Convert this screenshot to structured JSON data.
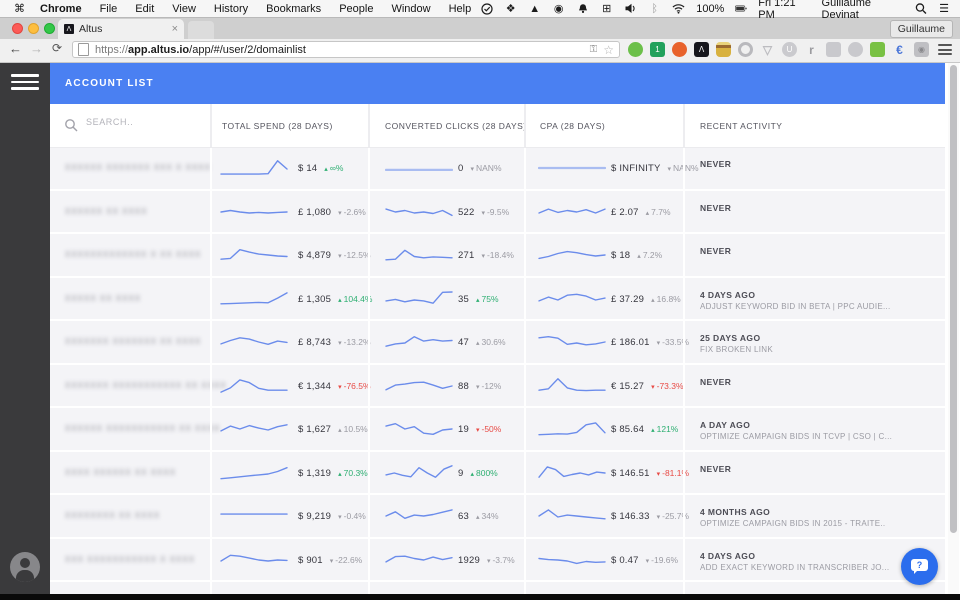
{
  "menubar": {
    "apple_label": "",
    "items": [
      "Chrome",
      "File",
      "Edit",
      "View",
      "History",
      "Bookmarks",
      "People",
      "Window",
      "Help"
    ],
    "status_icons": [
      {
        "name": "sync-check-icon",
        "glyph": "svg:sync"
      },
      {
        "name": "dropbox-icon",
        "glyph": "❖"
      },
      {
        "name": "drive-icon",
        "glyph": "▲"
      },
      {
        "name": "mask-icon",
        "glyph": "◉"
      },
      {
        "name": "bell-icon",
        "glyph": "svg:bell"
      },
      {
        "name": "window-grid-icon",
        "glyph": "⊞"
      },
      {
        "name": "volume-icon",
        "glyph": "svg:volume"
      },
      {
        "name": "bluetooth-icon",
        "glyph": "ᛒ",
        "dim": true
      },
      {
        "name": "wifi-icon",
        "glyph": "svg:wifi"
      }
    ],
    "battery_label": "100%",
    "clock": "Fri 1:21 PM",
    "user": "Guillaume Devinat"
  },
  "browser": {
    "tab_title": "Altus",
    "tab_favicon": "Λ",
    "close_glyph": "×",
    "profile_button": "Guillaume",
    "url_scheme": "https://",
    "url_host": "app.altus.io",
    "url_path": "/app/#/user/2/domainlist",
    "extensions": [
      {
        "name": "ghostery-icon",
        "kind": "circle",
        "bg": "#6cc04a",
        "glyph": "",
        "fg": "#fff"
      },
      {
        "name": "battery-ext-icon",
        "kind": "square",
        "bg": "#22a15c",
        "glyph": "1",
        "fg": "#fff"
      },
      {
        "name": "flame-icon",
        "kind": "circle",
        "bg": "#e8622c",
        "glyph": "",
        "fg": "#fff"
      },
      {
        "name": "altus-ext-icon",
        "kind": "square",
        "bg": "#17171d",
        "glyph": "Λ",
        "fg": "#fff"
      },
      {
        "name": "burger-icon",
        "kind": "burger",
        "bg": "#d8b13f",
        "glyph": "",
        "fg": "#6b4a12"
      },
      {
        "name": "target-icon",
        "kind": "ring",
        "bg": "#b9b9bd",
        "glyph": "",
        "fg": "#b9b9bd"
      },
      {
        "name": "vimeo-icon",
        "kind": "text",
        "bg": "",
        "glyph": "▽",
        "fg": "#bcbcc0"
      },
      {
        "name": "u-icon",
        "kind": "circle",
        "bg": "#cacace",
        "glyph": "U",
        "fg": "#fff"
      },
      {
        "name": "r-icon",
        "kind": "text",
        "bg": "",
        "glyph": "r",
        "fg": "#9b9b9f"
      },
      {
        "name": "chat-ext-icon",
        "kind": "square",
        "bg": "#c9c9cd",
        "glyph": "",
        "fg": "#fff"
      },
      {
        "name": "drop-icon",
        "kind": "circle",
        "bg": "#c9c9cd",
        "glyph": "",
        "fg": "#fff"
      },
      {
        "name": "frog-icon",
        "kind": "square",
        "bg": "#79c144",
        "glyph": "",
        "fg": "#2c5a12"
      },
      {
        "name": "euro-icon",
        "kind": "text",
        "bg": "",
        "glyph": "€",
        "fg": "#4a76d8"
      },
      {
        "name": "camera-icon",
        "kind": "square",
        "bg": "#bfbfc3",
        "glyph": "◉",
        "fg": "#88888c"
      }
    ]
  },
  "app": {
    "header_title": "ACCOUNT LIST",
    "search_placeholder": "SEARCH..",
    "columns": [
      "TOTAL SPEND (28 DAYS)",
      "CONVERTED CLICKS (28 DAYS)",
      "CPA (28 DAYS)",
      "RECENT ACTIVITY"
    ]
  },
  "colors": {
    "accent_blue": "#4a80f2",
    "sidebar": "#3a3a3c",
    "spark_line": "#6b8ceb",
    "spark_light": "#a9bcf1",
    "green": "#2eaf72",
    "red": "#e84a45",
    "gray_change": "#9b9ba3",
    "chat_button": "#2b6ded"
  },
  "rows": [
    {
      "name": "XXXXXX XXXXXXX XXX X XXXX",
      "spend": {
        "value": "$ 14",
        "dir": "up",
        "pct": "∞%",
        "tone": "green",
        "spark": [
          0.82,
          0.82,
          0.82,
          0.82,
          0.82,
          0.8,
          0.12,
          0.55
        ]
      },
      "clicks": {
        "value": "0",
        "dir": "down",
        "pct": "NAN%",
        "tone": "gray",
        "light": true,
        "spark": [
          0.6,
          0.6,
          0.6,
          0.6,
          0.6,
          0.6,
          0.6,
          0.6
        ]
      },
      "cpa": {
        "value": "$ INFINITY",
        "dir": "down",
        "pct": "NAN%",
        "tone": "gray",
        "light": true,
        "spark": [
          0.5,
          0.5,
          0.5,
          0.5,
          0.5,
          0.5,
          0.5,
          0.5
        ]
      },
      "activity": {
        "when": "NEVER",
        "detail": ""
      }
    },
    {
      "name": "XXXXXX XX XXXX",
      "spend": {
        "value": "£ 1,080",
        "dir": "down",
        "pct": "-2.6%",
        "tone": "gray",
        "spark": [
          0.5,
          0.42,
          0.5,
          0.55,
          0.52,
          0.55,
          0.52,
          0.5
        ]
      },
      "clicks": {
        "value": "522",
        "dir": "down",
        "pct": "-9.5%",
        "tone": "gray",
        "spark": [
          0.35,
          0.5,
          0.42,
          0.55,
          0.5,
          0.58,
          0.42,
          0.68
        ]
      },
      "cpa": {
        "value": "£ 2.07",
        "dir": "up",
        "pct": "7.7%",
        "tone": "gray",
        "spark": [
          0.55,
          0.35,
          0.52,
          0.42,
          0.5,
          0.38,
          0.55,
          0.35
        ]
      },
      "activity": {
        "when": "NEVER",
        "detail": ""
      }
    },
    {
      "name": "XXXXXXXXXXXXX X XX XXXX",
      "spend": {
        "value": "$ 4,879",
        "dir": "down",
        "pct": "-12.5%",
        "tone": "gray",
        "spark": [
          0.72,
          0.68,
          0.22,
          0.35,
          0.45,
          0.5,
          0.55,
          0.58
        ]
      },
      "clicks": {
        "value": "271",
        "dir": "down",
        "pct": "-18.4%",
        "tone": "gray",
        "spark": [
          0.75,
          0.72,
          0.25,
          0.58,
          0.65,
          0.6,
          0.62,
          0.65
        ]
      },
      "cpa": {
        "value": "$ 18",
        "dir": "up",
        "pct": "7.2%",
        "tone": "gray",
        "spark": [
          0.68,
          0.58,
          0.42,
          0.32,
          0.38,
          0.48,
          0.55,
          0.5
        ]
      },
      "activity": {
        "when": "NEVER",
        "detail": ""
      }
    },
    {
      "name": "XXXXX XX XXXX",
      "spend": {
        "value": "£ 1,305",
        "dir": "up",
        "pct": "104.4%",
        "tone": "green",
        "spark": [
          0.75,
          0.74,
          0.72,
          0.7,
          0.68,
          0.7,
          0.45,
          0.18
        ]
      },
      "clicks": {
        "value": "35",
        "dir": "up",
        "pct": "75%",
        "tone": "green",
        "spark": [
          0.6,
          0.52,
          0.65,
          0.55,
          0.6,
          0.72,
          0.15,
          0.13
        ]
      },
      "cpa": {
        "value": "£ 37.29",
        "dir": "up",
        "pct": "16.8%",
        "tone": "gray",
        "spark": [
          0.6,
          0.4,
          0.55,
          0.3,
          0.25,
          0.35,
          0.55,
          0.45
        ]
      },
      "activity": {
        "when": "4 DAYS AGO",
        "detail": "ADJUST KEYWORD BID IN BETA | PPC AUDIE..."
      }
    },
    {
      "name": "XXXXXXX XXXXXXX XX XXXX",
      "spend": {
        "value": "£ 8,743",
        "dir": "down",
        "pct": "-13.2%",
        "tone": "gray",
        "spark": [
          0.6,
          0.42,
          0.28,
          0.35,
          0.5,
          0.62,
          0.45,
          0.52
        ]
      },
      "clicks": {
        "value": "47",
        "dir": "up",
        "pct": "30.6%",
        "tone": "gray",
        "spark": [
          0.72,
          0.6,
          0.55,
          0.22,
          0.45,
          0.38,
          0.45,
          0.42
        ]
      },
      "cpa": {
        "value": "£ 186.01",
        "dir": "down",
        "pct": "-33.5%",
        "tone": "gray",
        "spark": [
          0.28,
          0.22,
          0.3,
          0.62,
          0.55,
          0.65,
          0.6,
          0.5
        ]
      },
      "activity": {
        "when": "25 DAYS AGO",
        "detail": "FIX BROKEN LINK"
      }
    },
    {
      "name": "XXXXXXX XXXXXXXXXXX XX XXXX",
      "spend": {
        "value": "€ 1,344",
        "dir": "down",
        "pct": "-76.5%",
        "tone": "red",
        "spark": [
          0.82,
          0.6,
          0.18,
          0.32,
          0.62,
          0.72,
          0.72,
          0.72
        ]
      },
      "clicks": {
        "value": "88",
        "dir": "down",
        "pct": "-12%",
        "tone": "gray",
        "spark": [
          0.7,
          0.45,
          0.4,
          0.32,
          0.3,
          0.45,
          0.62,
          0.5
        ]
      },
      "cpa": {
        "value": "€ 15.27",
        "dir": "down",
        "pct": "-73.3%",
        "tone": "red",
        "spark": [
          0.72,
          0.65,
          0.12,
          0.6,
          0.72,
          0.74,
          0.72,
          0.72
        ]
      },
      "activity": {
        "when": "NEVER",
        "detail": ""
      }
    },
    {
      "name": "XXXXXX XXXXXXXXXXX XX XXXX",
      "spend": {
        "value": "$ 1,627",
        "dir": "up",
        "pct": "10.5%",
        "tone": "gray",
        "spark": [
          0.6,
          0.35,
          0.5,
          0.32,
          0.45,
          0.55,
          0.38,
          0.28
        ]
      },
      "clicks": {
        "value": "19",
        "dir": "down",
        "pct": "-50%",
        "tone": "red",
        "spark": [
          0.35,
          0.22,
          0.5,
          0.38,
          0.72,
          0.78,
          0.55,
          0.5
        ]
      },
      "cpa": {
        "value": "$ 85.64",
        "dir": "up",
        "pct": "121%",
        "tone": "green",
        "spark": [
          0.8,
          0.78,
          0.75,
          0.77,
          0.68,
          0.28,
          0.18,
          0.7
        ]
      },
      "activity": {
        "when": "A DAY AGO",
        "detail": "OPTIMIZE CAMPAIGN BIDS IN TCVP | CSO | C..."
      }
    },
    {
      "name": "XXXX XXXXXX XX XXXX",
      "spend": {
        "value": "$ 1,319",
        "dir": "up",
        "pct": "70.3%",
        "tone": "green",
        "spark": [
          0.8,
          0.75,
          0.7,
          0.65,
          0.6,
          0.55,
          0.42,
          0.22
        ]
      },
      "clicks": {
        "value": "9",
        "dir": "up",
        "pct": "800%",
        "tone": "green",
        "spark": [
          0.6,
          0.5,
          0.62,
          0.7,
          0.22,
          0.5,
          0.72,
          0.3,
          0.12
        ]
      },
      "cpa": {
        "value": "$ 146.51",
        "dir": "down",
        "pct": "-81.1%",
        "tone": "red",
        "spark": [
          0.72,
          0.18,
          0.32,
          0.68,
          0.58,
          0.5,
          0.6,
          0.45,
          0.5
        ]
      },
      "activity": {
        "when": "NEVER",
        "detail": ""
      }
    },
    {
      "name": "XXXXXXXX XX XXXX",
      "spend": {
        "value": "$ 9,219",
        "dir": "down",
        "pct": "-0.4%",
        "tone": "gray",
        "spark": [
          0.4,
          0.4,
          0.4,
          0.4,
          0.4,
          0.4,
          0.4,
          0.4
        ]
      },
      "clicks": {
        "value": "63",
        "dir": "up",
        "pct": "34%",
        "tone": "gray",
        "spark": [
          0.5,
          0.28,
          0.62,
          0.45,
          0.5,
          0.42,
          0.3,
          0.18
        ]
      },
      "cpa": {
        "value": "$ 146.33",
        "dir": "down",
        "pct": "-25.7%",
        "tone": "gray",
        "spark": [
          0.5,
          0.18,
          0.55,
          0.45,
          0.5,
          0.55,
          0.6,
          0.65
        ]
      },
      "activity": {
        "when": "4 MONTHS AGO",
        "detail": "OPTIMIZE CAMPAIGN BIDS IN 2015 - TRAITE.."
      }
    },
    {
      "name": "XXX XXXXXXXXXXX X XXXX",
      "spend": {
        "value": "$ 901",
        "dir": "down",
        "pct": "-22.6%",
        "tone": "gray",
        "spark": [
          0.55,
          0.25,
          0.3,
          0.4,
          0.5,
          0.55,
          0.5,
          0.52
        ]
      },
      "clicks": {
        "value": "1929",
        "dir": "down",
        "pct": "-3.7%",
        "tone": "gray",
        "spark": [
          0.6,
          0.32,
          0.3,
          0.42,
          0.5,
          0.35,
          0.48,
          0.38
        ]
      },
      "cpa": {
        "value": "$ 0.47",
        "dir": "down",
        "pct": "-19.6%",
        "tone": "gray",
        "spark": [
          0.42,
          0.48,
          0.5,
          0.55,
          0.68,
          0.58,
          0.62,
          0.6
        ]
      },
      "activity": {
        "when": "4 DAYS AGO",
        "detail": "ADD EXACT KEYWORD IN TRANSCRIBER JO..."
      }
    },
    {
      "name": "",
      "spend": {
        "value": "",
        "dir": "up",
        "pct": "",
        "tone": "gray",
        "spark": [
          0.95,
          0.3,
          0.15,
          0.5,
          0.9,
          0.95,
          0.9,
          0.9
        ]
      },
      "clicks": {
        "value": "",
        "dir": "up",
        "pct": "",
        "tone": "gray",
        "spark": [
          0.9,
          0.4,
          0.15,
          0.4,
          0.9,
          0.9,
          0.9,
          0.9
        ]
      },
      "cpa": {
        "value": "",
        "dir": "up",
        "pct": "",
        "tone": "gray",
        "spark": [
          0.9,
          0.9,
          0.3,
          0.15,
          0.5,
          0.9,
          0.9,
          0.9
        ]
      },
      "activity": {
        "when": "",
        "detail": ""
      }
    }
  ]
}
